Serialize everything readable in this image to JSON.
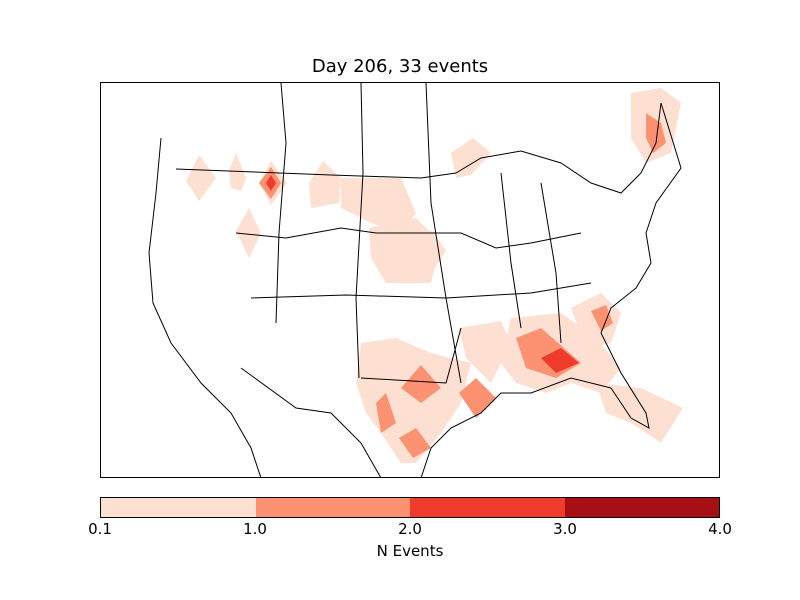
{
  "title": "Day 206, 33 events",
  "colorbar": {
    "label": "N Events",
    "ticks": [
      "0.1",
      "1.0",
      "2.0",
      "3.0",
      "4.0"
    ],
    "bins": [
      {
        "range": "0.1-1.0",
        "color": "#fee0d2"
      },
      {
        "range": "1.0-2.0",
        "color": "#fc9272"
      },
      {
        "range": "2.0-3.0",
        "color": "#ef3b2c"
      },
      {
        "range": "3.0-4.0",
        "color": "#a50f15"
      }
    ]
  },
  "legend_colors": {
    "level1": "#fee0d2",
    "level2": "#fc9272",
    "level3": "#ef3b2c",
    "level4": "#a50f15"
  }
}
